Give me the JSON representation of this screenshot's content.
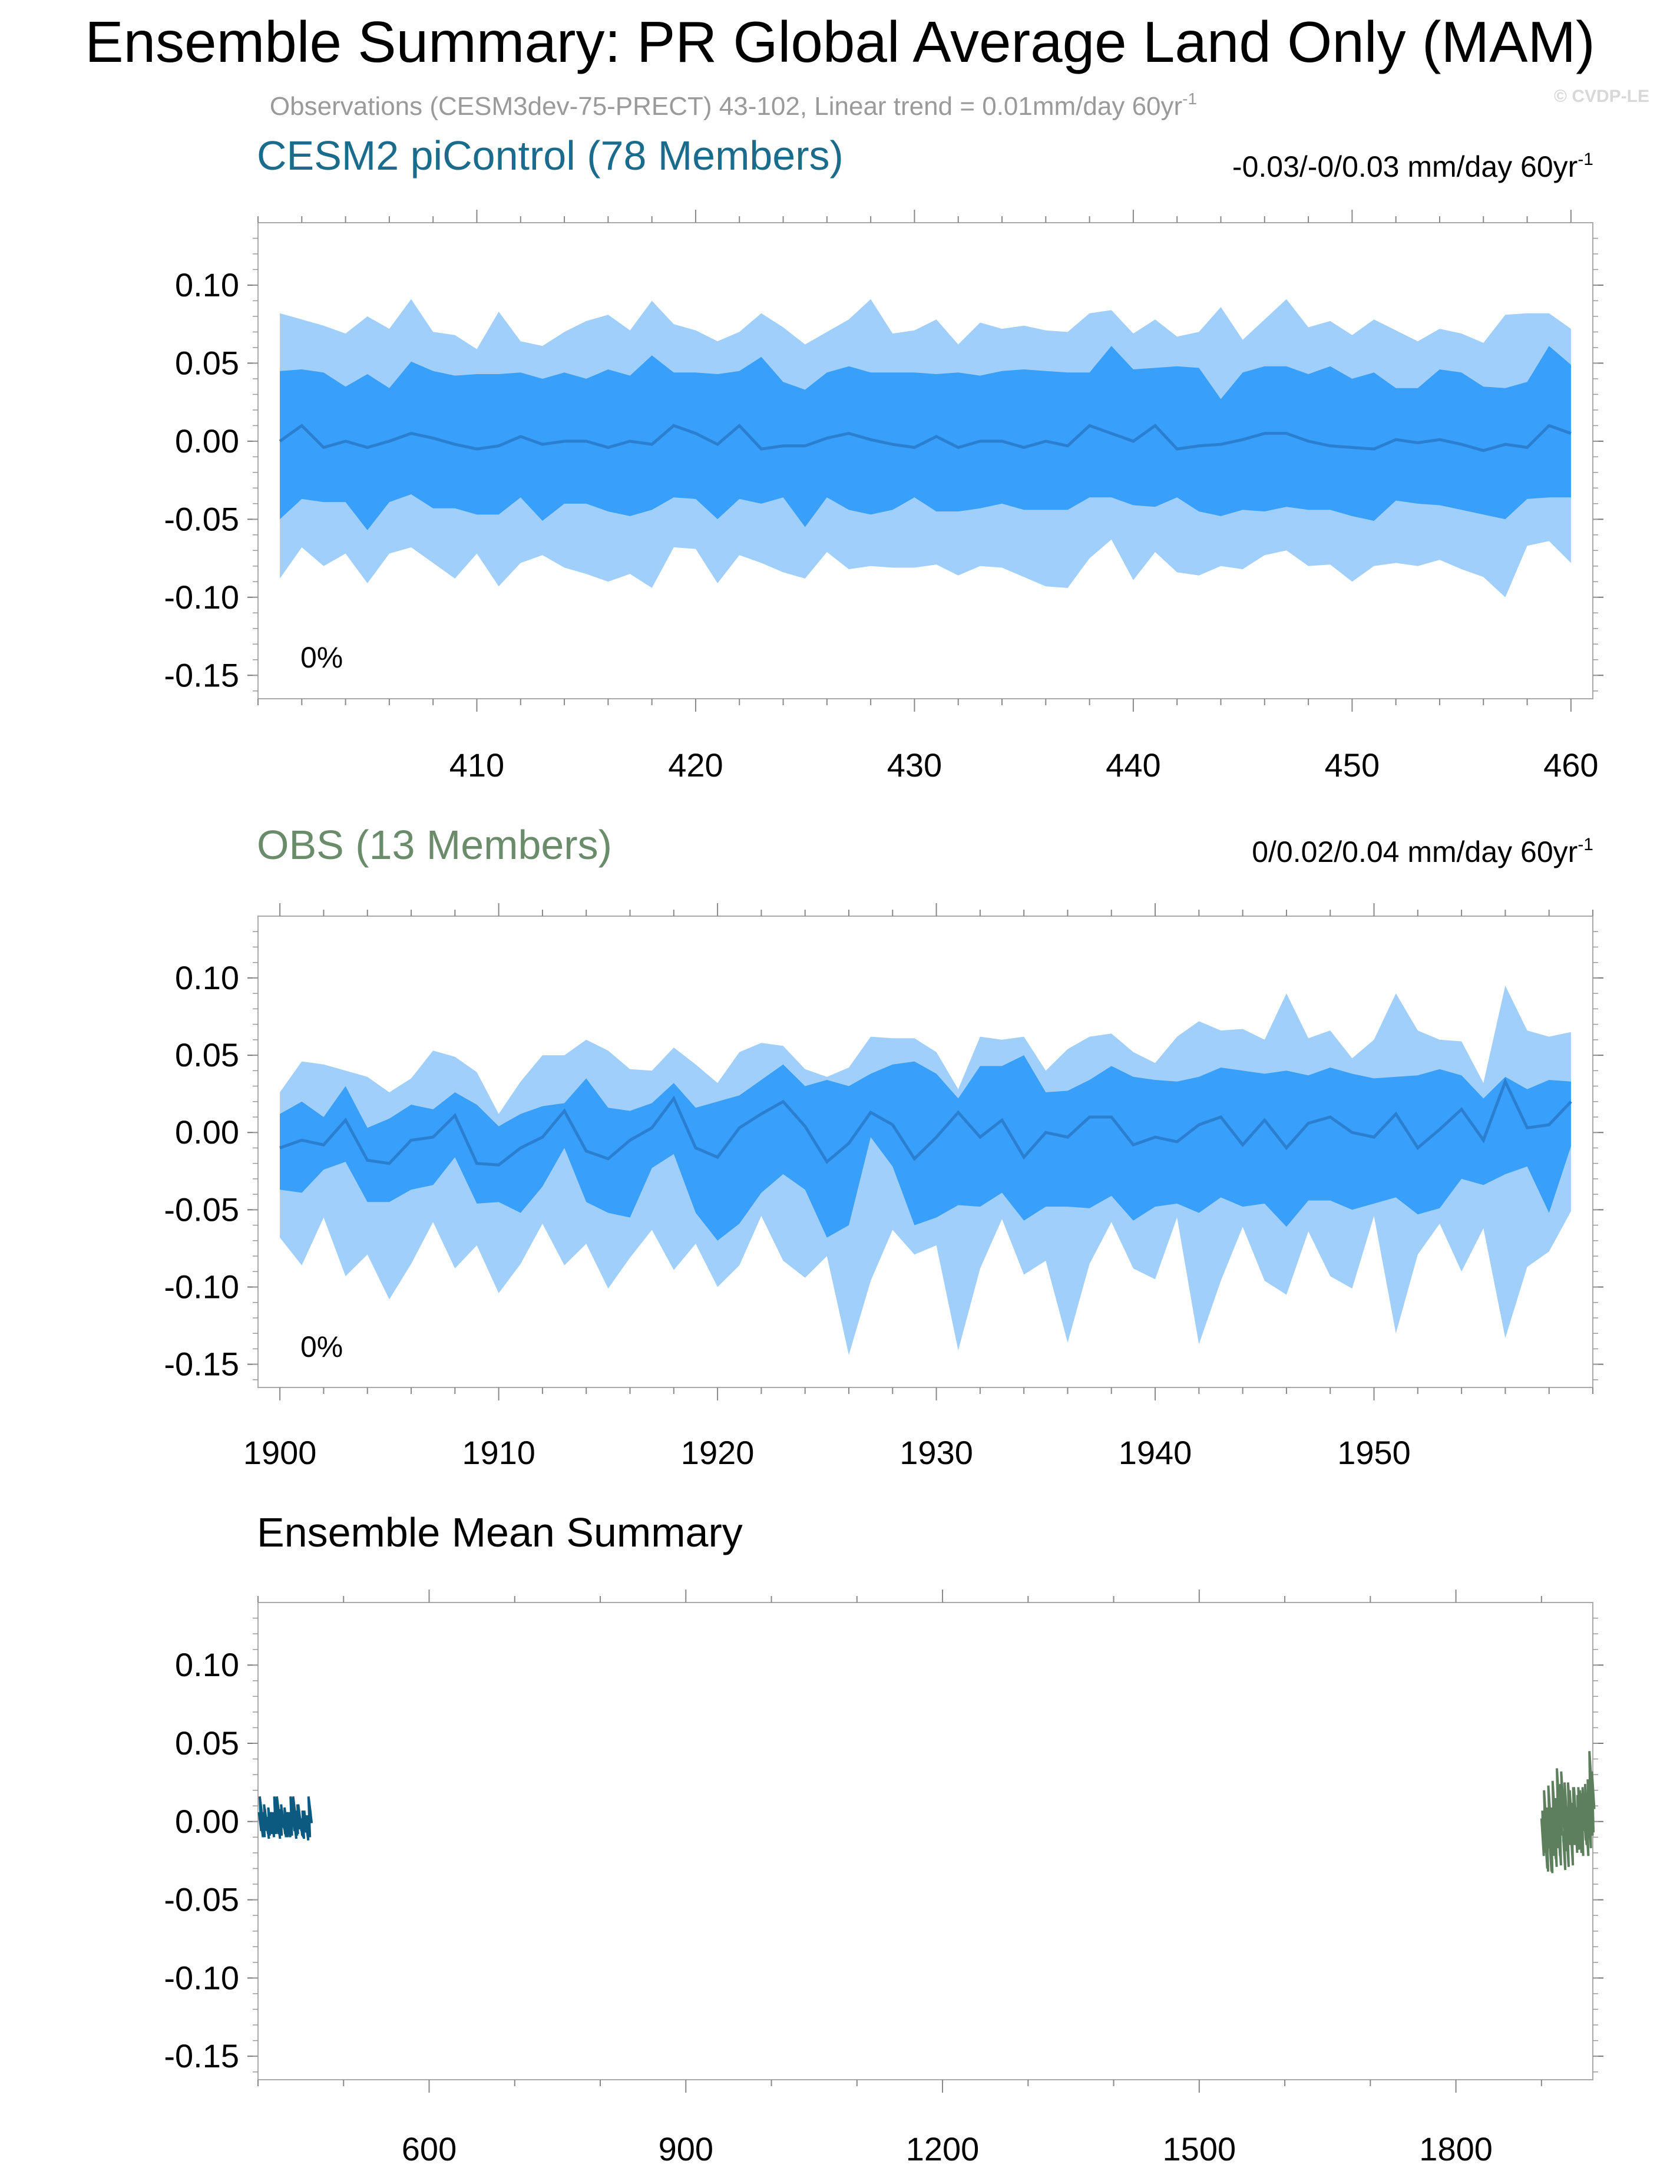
{
  "figure": {
    "title": "Ensemble Summary: PR Global Average Land Only (MAM)",
    "subtitle": "Observations (CESM3dev-75-PRECT) 43-102, Linear trend = 0.01mm/day 60yr",
    "subtitle_sup": "-1",
    "credit": "© CVDP-LE"
  },
  "colors": {
    "outer_band": "#a0cffb",
    "inner_band": "#389ffa",
    "mean_line": "#2b7fd0",
    "cesm_title": "#1b6b8c",
    "obs_title": "#6a8c6a",
    "cesm_line": "#0c5a80",
    "obs_line": "#5d7f5d",
    "frame": "#aaaaaa"
  },
  "chart_data": [
    {
      "name": "cesm2-picontrol",
      "type": "area",
      "title": "CESM2 piControl (78 Members)",
      "trend_text": "-0.03/-0/0.03 mm/day 60yr",
      "trend_sup": "-1",
      "percent_label": "0%",
      "x_start": 401,
      "xlim": [
        400,
        461
      ],
      "ylim": [
        -0.165,
        0.14
      ],
      "xticks": [
        410,
        420,
        430,
        440,
        450,
        460
      ],
      "yticks": [
        0.1,
        0.05,
        0.0,
        -0.05,
        -0.1,
        -0.15
      ],
      "ytick_labels": [
        "0.10",
        "0.05",
        "0.00",
        "-0.05",
        "-0.10",
        "-0.15"
      ],
      "series": [
        {
          "name": "max",
          "values": [
            0.082,
            0.078,
            0.074,
            0.069,
            0.08,
            0.072,
            0.091,
            0.07,
            0.068,
            0.059,
            0.083,
            0.064,
            0.061,
            0.07,
            0.077,
            0.081,
            0.071,
            0.09,
            0.075,
            0.071,
            0.064,
            0.07,
            0.082,
            0.073,
            0.062,
            0.07,
            0.078,
            0.091,
            0.069,
            0.071,
            0.078,
            0.062,
            0.076,
            0.072,
            0.074,
            0.071,
            0.07,
            0.082,
            0.084,
            0.069,
            0.078,
            0.067,
            0.07,
            0.086,
            0.065,
            0.078,
            0.091,
            0.073,
            0.077,
            0.068,
            0.078,
            0.071,
            0.064,
            0.072,
            0.069,
            0.063,
            0.081,
            0.082,
            0.082,
            0.072
          ]
        },
        {
          "name": "p90",
          "values": [
            0.045,
            0.046,
            0.044,
            0.035,
            0.043,
            0.034,
            0.051,
            0.045,
            0.042,
            0.043,
            0.043,
            0.044,
            0.04,
            0.044,
            0.04,
            0.046,
            0.042,
            0.055,
            0.044,
            0.044,
            0.043,
            0.045,
            0.054,
            0.038,
            0.033,
            0.044,
            0.048,
            0.044,
            0.044,
            0.044,
            0.043,
            0.044,
            0.042,
            0.045,
            0.046,
            0.045,
            0.044,
            0.044,
            0.061,
            0.046,
            0.047,
            0.048,
            0.047,
            0.027,
            0.044,
            0.048,
            0.048,
            0.043,
            0.048,
            0.04,
            0.044,
            0.034,
            0.034,
            0.046,
            0.044,
            0.035,
            0.034,
            0.038,
            0.061,
            0.049
          ]
        },
        {
          "name": "mean",
          "values": [
            0.0,
            0.01,
            -0.004,
            0.0,
            -0.004,
            0.0,
            0.005,
            0.002,
            -0.002,
            -0.005,
            -0.003,
            0.003,
            -0.002,
            0.0,
            0.0,
            -0.004,
            0.0,
            -0.002,
            0.01,
            0.005,
            -0.002,
            0.01,
            -0.005,
            -0.003,
            -0.003,
            0.002,
            0.005,
            0.001,
            -0.002,
            -0.004,
            0.003,
            -0.004,
            0.0,
            0.0,
            -0.004,
            0.0,
            -0.003,
            0.01,
            0.005,
            0.0,
            0.01,
            -0.005,
            -0.003,
            -0.002,
            0.001,
            0.005,
            0.005,
            0.0,
            -0.003,
            -0.004,
            -0.005,
            0.001,
            -0.001,
            0.001,
            -0.002,
            -0.006,
            -0.002,
            -0.004,
            0.01,
            0.005
          ]
        },
        {
          "name": "p10",
          "values": [
            -0.05,
            -0.037,
            -0.039,
            -0.039,
            -0.057,
            -0.039,
            -0.034,
            -0.043,
            -0.043,
            -0.047,
            -0.047,
            -0.036,
            -0.051,
            -0.04,
            -0.04,
            -0.045,
            -0.048,
            -0.044,
            -0.036,
            -0.037,
            -0.05,
            -0.037,
            -0.04,
            -0.036,
            -0.055,
            -0.036,
            -0.044,
            -0.047,
            -0.044,
            -0.036,
            -0.045,
            -0.045,
            -0.043,
            -0.04,
            -0.044,
            -0.044,
            -0.044,
            -0.036,
            -0.036,
            -0.041,
            -0.042,
            -0.036,
            -0.045,
            -0.048,
            -0.044,
            -0.045,
            -0.042,
            -0.044,
            -0.044,
            -0.048,
            -0.051,
            -0.038,
            -0.04,
            -0.041,
            -0.044,
            -0.047,
            -0.05,
            -0.037,
            -0.036,
            -0.036
          ]
        },
        {
          "name": "min",
          "values": [
            -0.088,
            -0.068,
            -0.08,
            -0.072,
            -0.091,
            -0.072,
            -0.068,
            -0.078,
            -0.088,
            -0.072,
            -0.093,
            -0.078,
            -0.073,
            -0.081,
            -0.085,
            -0.09,
            -0.085,
            -0.094,
            -0.068,
            -0.069,
            -0.091,
            -0.073,
            -0.078,
            -0.084,
            -0.088,
            -0.071,
            -0.082,
            -0.08,
            -0.081,
            -0.081,
            -0.079,
            -0.086,
            -0.08,
            -0.081,
            -0.087,
            -0.093,
            -0.094,
            -0.075,
            -0.063,
            -0.089,
            -0.071,
            -0.084,
            -0.086,
            -0.08,
            -0.082,
            -0.073,
            -0.07,
            -0.08,
            -0.079,
            -0.09,
            -0.08,
            -0.078,
            -0.08,
            -0.076,
            -0.082,
            -0.087,
            -0.1,
            -0.067,
            -0.064,
            -0.078
          ]
        }
      ]
    },
    {
      "name": "obs",
      "type": "area",
      "title": "OBS (13 Members)",
      "trend_text": "0/0.02/0.04 mm/day 60yr",
      "trend_sup": "-1",
      "percent_label": "0%",
      "x_start": 1900,
      "xlim": [
        1899,
        1960
      ],
      "ylim": [
        -0.165,
        0.14
      ],
      "xticks": [
        1900,
        1910,
        1920,
        1930,
        1940,
        1950
      ],
      "yticks": [
        0.1,
        0.05,
        0.0,
        -0.05,
        -0.1,
        -0.15
      ],
      "ytick_labels": [
        "0.10",
        "0.05",
        "0.00",
        "-0.05",
        "-0.10",
        "-0.15"
      ],
      "series": [
        {
          "name": "max",
          "values": [
            0.026,
            0.046,
            0.044,
            0.04,
            0.036,
            0.026,
            0.035,
            0.053,
            0.049,
            0.039,
            0.012,
            0.033,
            0.05,
            0.05,
            0.06,
            0.053,
            0.041,
            0.04,
            0.055,
            0.044,
            0.032,
            0.052,
            0.058,
            0.056,
            0.041,
            0.036,
            0.042,
            0.062,
            0.061,
            0.061,
            0.052,
            0.028,
            0.062,
            0.06,
            0.062,
            0.04,
            0.054,
            0.062,
            0.064,
            0.052,
            0.045,
            0.062,
            0.072,
            0.066,
            0.067,
            0.06,
            0.09,
            0.061,
            0.066,
            0.048,
            0.06,
            0.09,
            0.066,
            0.06,
            0.059,
            0.032,
            0.095,
            0.066,
            0.062,
            0.065
          ]
        },
        {
          "name": "p90",
          "values": [
            0.012,
            0.02,
            0.01,
            0.03,
            0.003,
            0.009,
            0.018,
            0.015,
            0.026,
            0.018,
            0.004,
            0.012,
            0.017,
            0.019,
            0.035,
            0.016,
            0.014,
            0.019,
            0.032,
            0.016,
            0.02,
            0.024,
            0.034,
            0.044,
            0.03,
            0.034,
            0.03,
            0.038,
            0.044,
            0.046,
            0.038,
            0.022,
            0.043,
            0.043,
            0.05,
            0.026,
            0.027,
            0.034,
            0.043,
            0.036,
            0.034,
            0.033,
            0.036,
            0.042,
            0.04,
            0.038,
            0.04,
            0.037,
            0.042,
            0.038,
            0.035,
            0.036,
            0.037,
            0.041,
            0.037,
            0.022,
            0.036,
            0.028,
            0.034,
            0.033
          ]
        },
        {
          "name": "mean",
          "values": [
            -0.01,
            -0.005,
            -0.008,
            0.008,
            -0.018,
            -0.02,
            -0.005,
            -0.003,
            0.011,
            -0.02,
            -0.021,
            -0.01,
            -0.003,
            0.014,
            -0.012,
            -0.017,
            -0.005,
            0.003,
            0.022,
            -0.01,
            -0.016,
            0.003,
            0.012,
            0.02,
            0.004,
            -0.019,
            -0.007,
            0.013,
            0.005,
            -0.017,
            -0.003,
            0.013,
            -0.003,
            0.008,
            -0.016,
            0.0,
            -0.003,
            0.01,
            0.01,
            -0.008,
            -0.003,
            -0.006,
            0.005,
            0.01,
            -0.008,
            0.008,
            -0.01,
            0.006,
            0.01,
            0.0,
            -0.003,
            0.012,
            -0.01,
            0.002,
            0.015,
            -0.005,
            0.033,
            0.003,
            0.005,
            0.02
          ]
        },
        {
          "name": "p10",
          "values": [
            -0.037,
            -0.039,
            -0.024,
            -0.019,
            -0.045,
            -0.045,
            -0.037,
            -0.034,
            -0.016,
            -0.046,
            -0.045,
            -0.052,
            -0.035,
            -0.01,
            -0.045,
            -0.052,
            -0.055,
            -0.023,
            -0.014,
            -0.052,
            -0.07,
            -0.059,
            -0.039,
            -0.027,
            -0.037,
            -0.068,
            -0.06,
            -0.003,
            -0.022,
            -0.06,
            -0.055,
            -0.047,
            -0.048,
            -0.039,
            -0.057,
            -0.048,
            -0.048,
            -0.049,
            -0.041,
            -0.057,
            -0.048,
            -0.046,
            -0.052,
            -0.042,
            -0.048,
            -0.046,
            -0.061,
            -0.044,
            -0.044,
            -0.05,
            -0.046,
            -0.042,
            -0.053,
            -0.049,
            -0.03,
            -0.034,
            -0.027,
            -0.022,
            -0.052,
            -0.009
          ]
        },
        {
          "name": "min",
          "values": [
            -0.068,
            -0.086,
            -0.055,
            -0.093,
            -0.079,
            -0.108,
            -0.085,
            -0.058,
            -0.088,
            -0.073,
            -0.104,
            -0.085,
            -0.059,
            -0.086,
            -0.072,
            -0.101,
            -0.081,
            -0.063,
            -0.089,
            -0.072,
            -0.1,
            -0.086,
            -0.054,
            -0.083,
            -0.094,
            -0.08,
            -0.144,
            -0.096,
            -0.063,
            -0.079,
            -0.073,
            -0.141,
            -0.088,
            -0.056,
            -0.092,
            -0.083,
            -0.136,
            -0.085,
            -0.058,
            -0.088,
            -0.095,
            -0.055,
            -0.137,
            -0.096,
            -0.061,
            -0.096,
            -0.105,
            -0.064,
            -0.093,
            -0.101,
            -0.054,
            -0.13,
            -0.079,
            -0.059,
            -0.09,
            -0.062,
            -0.133,
            -0.087,
            -0.077,
            -0.051
          ]
        }
      ]
    },
    {
      "name": "ensemble-mean-summary",
      "type": "line",
      "title": "Ensemble Mean Summary",
      "xlim": [
        400,
        1960
      ],
      "ylim": [
        -0.165,
        0.14
      ],
      "xticks": [
        600,
        900,
        1200,
        1500,
        1800
      ],
      "yticks": [
        0.1,
        0.05,
        0.0,
        -0.05,
        -0.1,
        -0.15
      ],
      "ytick_labels": [
        "0.10",
        "0.05",
        "0.00",
        "-0.05",
        "-0.10",
        "-0.15"
      ],
      "series": [
        {
          "name": "CESM2 piControl",
          "source_panel": 0
        },
        {
          "name": "OBS",
          "source_panel": 1
        }
      ]
    }
  ]
}
